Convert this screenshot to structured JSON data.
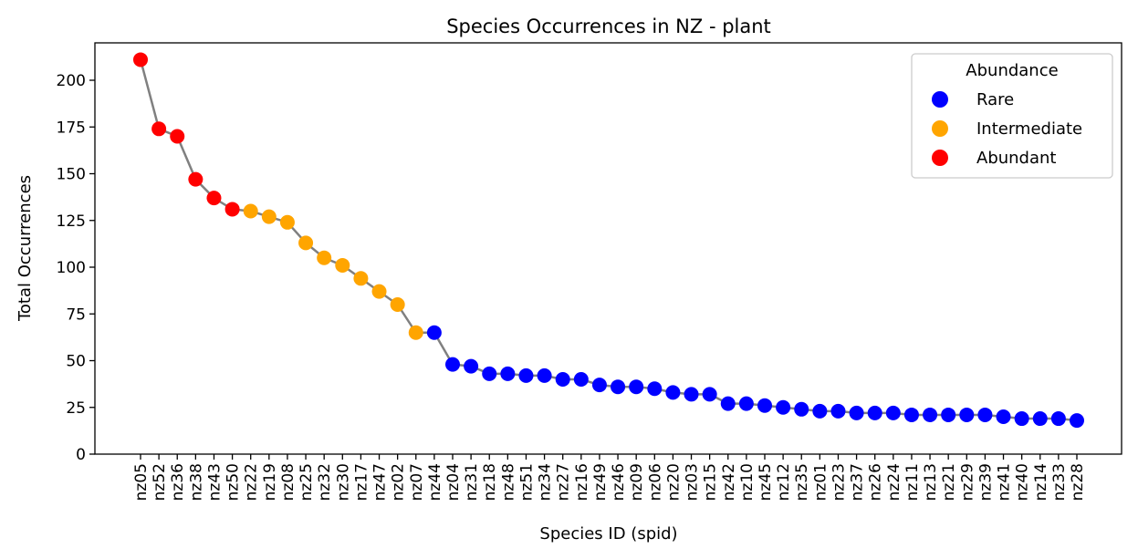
{
  "chart_data": {
    "type": "scatter",
    "title": "Species Occurrences in NZ - plant",
    "xlabel": "Species ID (spid)",
    "ylabel": "Total Occurrences",
    "ylim": [
      0,
      220
    ],
    "yticks": [
      0,
      25,
      50,
      75,
      100,
      125,
      150,
      175,
      200
    ],
    "grid": false,
    "line_color": "#808080",
    "categories": [
      "nz05",
      "nz52",
      "nz36",
      "nz38",
      "nz43",
      "nz50",
      "nz22",
      "nz19",
      "nz08",
      "nz25",
      "nz32",
      "nz30",
      "nz17",
      "nz47",
      "nz02",
      "nz07",
      "nz44",
      "nz04",
      "nz31",
      "nz18",
      "nz48",
      "nz51",
      "nz34",
      "nz27",
      "nz16",
      "nz49",
      "nz46",
      "nz09",
      "nz06",
      "nz20",
      "nz03",
      "nz15",
      "nz42",
      "nz10",
      "nz45",
      "nz12",
      "nz35",
      "nz01",
      "nz23",
      "nz37",
      "nz26",
      "nz24",
      "nz11",
      "nz13",
      "nz21",
      "nz29",
      "nz39",
      "nz41",
      "nz40",
      "nz14",
      "nz33",
      "nz28"
    ],
    "values": [
      211,
      174,
      170,
      147,
      137,
      131,
      130,
      127,
      124,
      113,
      105,
      101,
      94,
      87,
      80,
      65,
      65,
      48,
      47,
      43,
      43,
      42,
      42,
      40,
      40,
      37,
      36,
      36,
      35,
      33,
      32,
      32,
      27,
      27,
      26,
      25,
      24,
      23,
      23,
      22,
      22,
      22,
      21,
      21,
      21,
      21,
      21,
      20,
      19,
      19,
      19,
      18
    ],
    "abundance": [
      "Abundant",
      "Abundant",
      "Abundant",
      "Abundant",
      "Abundant",
      "Abundant",
      "Intermediate",
      "Intermediate",
      "Intermediate",
      "Intermediate",
      "Intermediate",
      "Intermediate",
      "Intermediate",
      "Intermediate",
      "Intermediate",
      "Intermediate",
      "Rare",
      "Rare",
      "Rare",
      "Rare",
      "Rare",
      "Rare",
      "Rare",
      "Rare",
      "Rare",
      "Rare",
      "Rare",
      "Rare",
      "Rare",
      "Rare",
      "Rare",
      "Rare",
      "Rare",
      "Rare",
      "Rare",
      "Rare",
      "Rare",
      "Rare",
      "Rare",
      "Rare",
      "Rare",
      "Rare",
      "Rare",
      "Rare",
      "Rare",
      "Rare",
      "Rare",
      "Rare",
      "Rare",
      "Rare",
      "Rare",
      "Rare"
    ],
    "legend": {
      "title": "Abundance",
      "position": "top-right",
      "entries": [
        {
          "label": "Rare",
          "key": "Rare",
          "color": "#0000ff"
        },
        {
          "label": "Intermediate",
          "key": "Intermediate",
          "color": "#ffa500"
        },
        {
          "label": "Abundant",
          "key": "Abundant",
          "color": "#ff0000"
        }
      ]
    }
  }
}
